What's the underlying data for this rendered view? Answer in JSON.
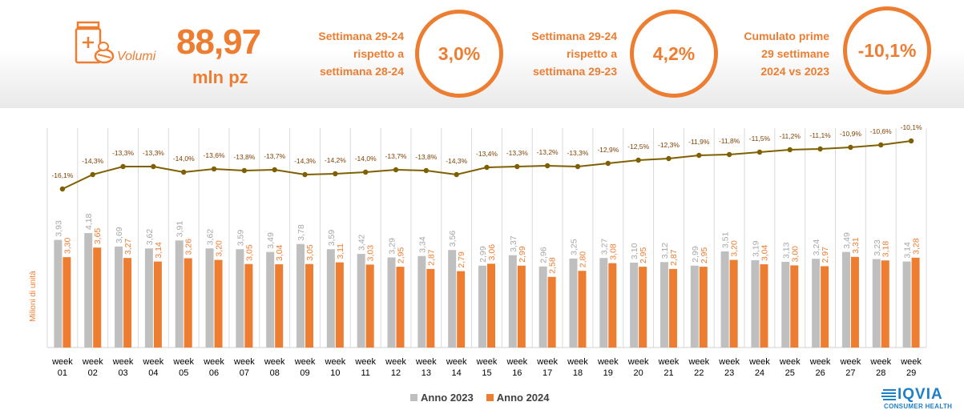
{
  "header": {
    "volumi_label": "Volumi",
    "volumi_value": "88,97",
    "volumi_unit": "mln pz",
    "kpis": [
      {
        "text": "Settimana 29-24\nrispetto a\nsettimana 28-24",
        "value": "3,0%"
      },
      {
        "text": "Settimana 29-24\nrispetto a\nsettimana 29-23",
        "value": "4,2%"
      },
      {
        "text": "Cumulato prime\n29 settimane\n2024 vs 2023",
        "value": "-10,1%"
      }
    ]
  },
  "brand": {
    "name": "IQVIA",
    "sub": "CONSUMER HEALTH"
  },
  "colors": {
    "series_2023": "#bfbfbf",
    "series_2024": "#ed7d31",
    "line": "#7f6000",
    "accent": "#ed7d31",
    "brand": "#1e7fc9"
  },
  "chart_data": {
    "type": "bar",
    "ylabel": "Milioni di unità",
    "categories": [
      "week\n01",
      "week\n02",
      "week\n03",
      "week\n04",
      "week\n05",
      "week\n06",
      "week\n07",
      "week\n08",
      "week\n09",
      "week\n10",
      "week\n11",
      "week\n12",
      "week\n13",
      "week\n14",
      "week\n15",
      "week\n16",
      "week\n17",
      "week\n18",
      "week\n19",
      "week\n20",
      "week\n21",
      "week\n22",
      "week\n23",
      "week\n24",
      "week\n25",
      "week\n26",
      "week\n27",
      "week\n28",
      "week\n29"
    ],
    "series": [
      {
        "name": "Anno 2023",
        "values": [
          3.93,
          4.18,
          3.69,
          3.62,
          3.91,
          3.62,
          3.59,
          3.49,
          3.78,
          3.59,
          3.42,
          3.29,
          3.34,
          3.56,
          2.99,
          3.37,
          2.96,
          3.25,
          3.27,
          3.1,
          3.12,
          2.99,
          3.51,
          3.19,
          3.13,
          3.24,
          3.49,
          3.23,
          3.14
        ],
        "labels": [
          "3,93",
          "4,18",
          "3,69",
          "3,62",
          "3,91",
          "3,62",
          "3,59",
          "3,49",
          "3,78",
          "3,59",
          "3,42",
          "3,29",
          "3,34",
          "3,56",
          "2,99",
          "3,37",
          "2,96",
          "3,25",
          "3,27",
          "3,10",
          "3,12",
          "2,99",
          "3,51",
          "3,19",
          "3,13",
          "3,24",
          "3,49",
          "3,23",
          "3,14"
        ]
      },
      {
        "name": "Anno 2024",
        "values": [
          3.3,
          3.65,
          3.27,
          3.14,
          3.26,
          3.2,
          3.05,
          3.04,
          3.05,
          3.11,
          3.03,
          2.95,
          2.87,
          2.79,
          3.06,
          2.99,
          2.58,
          2.8,
          3.08,
          2.95,
          2.87,
          2.95,
          3.2,
          3.04,
          3.0,
          2.97,
          3.31,
          3.18,
          3.28
        ],
        "labels": [
          "3,30",
          "3,65",
          "3,27",
          "3,14",
          "3,26",
          "3,20",
          "3,05",
          "3,04",
          "3,05",
          "3,11",
          "3,03",
          "2,95",
          "2,87",
          "2,79",
          "3,06",
          "2,99",
          "2,58",
          "2,80",
          "3,08",
          "2,95",
          "2,87",
          "2,95",
          "3,20",
          "3,04",
          "3,00",
          "2,97",
          "3,31",
          "3,18",
          "3,28"
        ]
      }
    ],
    "cumulative_line": {
      "values": [
        -16.1,
        -14.3,
        -13.3,
        -13.3,
        -14.0,
        -13.6,
        -13.8,
        -13.7,
        -14.3,
        -14.2,
        -14.0,
        -13.7,
        -13.8,
        -14.3,
        -13.4,
        -13.3,
        -13.2,
        -13.3,
        -12.9,
        -12.5,
        -12.3,
        -11.9,
        -11.8,
        -11.5,
        -11.2,
        -11.1,
        -10.9,
        -10.6,
        -10.1
      ],
      "labels": [
        "-16,1%",
        "-14,3%",
        "-13,3%",
        "-13,3%",
        "-14,0%",
        "-13,6%",
        "-13,8%",
        "-13,7%",
        "-14,3%",
        "-14,2%",
        "-14,0%",
        "-13,7%",
        "-13,8%",
        "-14,3%",
        "-13,4%",
        "-13,3%",
        "-13,2%",
        "-13,3%",
        "-12,9%",
        "-12,5%",
        "-12,3%",
        "-11,9%",
        "-11,8%",
        "-11,5%",
        "-11,2%",
        "-11,1%",
        "-10,9%",
        "-10,6%",
        "-10,1%"
      ]
    },
    "ylim": [
      0,
      4.5
    ],
    "legend": "bottom",
    "grid": "vertical"
  }
}
